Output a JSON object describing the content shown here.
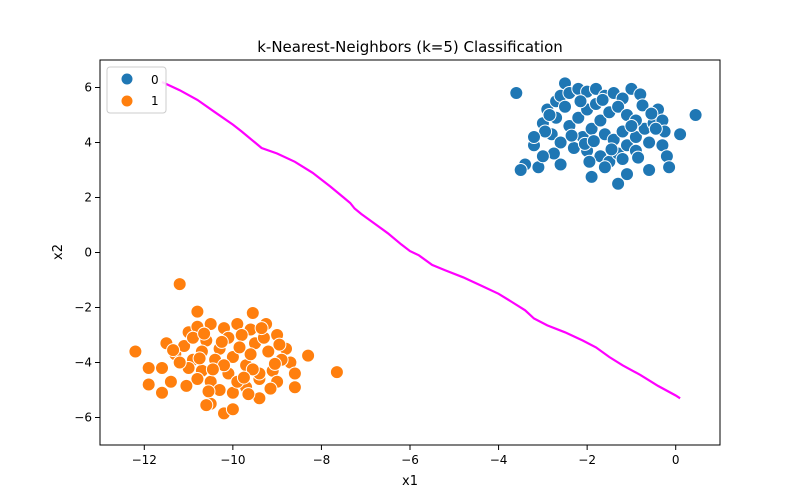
{
  "chart_data": {
    "type": "scatter",
    "title": "k-Nearest-Neighbors (k=5) Classification",
    "xlabel": "x1",
    "ylabel": "x2",
    "xlim": [
      -13,
      1
    ],
    "ylim": [
      -7,
      7
    ],
    "xticks": [
      -12,
      -10,
      -8,
      -6,
      -4,
      -2,
      0
    ],
    "yticks": [
      -6,
      -4,
      -2,
      0,
      2,
      4,
      6
    ],
    "xtick_labels": [
      "−12",
      "−10",
      "−8",
      "−6",
      "−4",
      "−2",
      "0"
    ],
    "ytick_labels": [
      "−6",
      "−4",
      "−2",
      "0",
      "2",
      "4",
      "6"
    ],
    "grid": false,
    "legend": {
      "placement": "top-left",
      "entries": [
        {
          "label": "0",
          "color": "#1f77b4"
        },
        {
          "label": "1",
          "color": "#ff7f0e"
        }
      ]
    },
    "series": [
      {
        "name": "0",
        "color": "#1f77b4",
        "points": [
          [
            -3.6,
            5.8
          ],
          [
            0.45,
            5.0
          ],
          [
            0.1,
            4.3
          ],
          [
            -3.4,
            3.2
          ],
          [
            -3.5,
            3.0
          ],
          [
            -3.2,
            3.9
          ],
          [
            -3.1,
            3.1
          ],
          [
            -2.6,
            3.2
          ],
          [
            -1.9,
            2.75
          ],
          [
            -1.3,
            2.5
          ],
          [
            -1.1,
            2.85
          ],
          [
            -0.6,
            3.0
          ],
          [
            -0.3,
            3.9
          ],
          [
            -0.2,
            3.5
          ],
          [
            -0.15,
            3.1
          ],
          [
            -2.5,
            6.15
          ],
          [
            -1.0,
            5.95
          ],
          [
            -0.8,
            5.75
          ],
          [
            -0.4,
            5.2
          ],
          [
            -3.0,
            4.7
          ],
          [
            -2.9,
            5.2
          ],
          [
            -2.7,
            5.5
          ],
          [
            -2.6,
            5.7
          ],
          [
            -2.4,
            5.8
          ],
          [
            -2.2,
            5.95
          ],
          [
            -2.0,
            5.85
          ],
          [
            -1.8,
            5.95
          ],
          [
            -1.6,
            5.7
          ],
          [
            -1.4,
            5.8
          ],
          [
            -1.2,
            5.6
          ],
          [
            -2.8,
            4.3
          ],
          [
            -2.6,
            4.0
          ],
          [
            -2.3,
            3.8
          ],
          [
            -2.0,
            3.7
          ],
          [
            -1.7,
            3.5
          ],
          [
            -1.5,
            3.3
          ],
          [
            -1.3,
            3.6
          ],
          [
            -1.1,
            3.9
          ],
          [
            -0.9,
            4.2
          ],
          [
            -0.7,
            4.5
          ],
          [
            -0.5,
            4.7
          ],
          [
            -0.3,
            4.8
          ],
          [
            -0.25,
            4.4
          ],
          [
            -0.6,
            4.0
          ],
          [
            -0.9,
            3.7
          ],
          [
            -1.2,
            3.4
          ],
          [
            -1.6,
            3.1
          ],
          [
            -2.1,
            4.2
          ],
          [
            -1.9,
            4.5
          ],
          [
            -1.7,
            4.8
          ],
          [
            -1.5,
            5.1
          ],
          [
            -1.3,
            5.3
          ],
          [
            -1.1,
            5.0
          ],
          [
            -0.9,
            4.8
          ],
          [
            -2.4,
            4.6
          ],
          [
            -2.2,
            4.9
          ],
          [
            -2.0,
            5.2
          ],
          [
            -1.8,
            5.4
          ],
          [
            -1.6,
            4.3
          ],
          [
            -1.4,
            4.1
          ],
          [
            -1.2,
            4.4
          ],
          [
            -1.0,
            4.6
          ],
          [
            -2.5,
            5.3
          ],
          [
            -2.7,
            4.9
          ],
          [
            -2.95,
            4.4
          ],
          [
            -3.2,
            4.2
          ],
          [
            -2.35,
            4.25
          ],
          [
            -2.05,
            3.95
          ],
          [
            -1.85,
            4.05
          ],
          [
            -0.75,
            5.35
          ],
          [
            -0.55,
            5.05
          ],
          [
            -0.45,
            4.5
          ],
          [
            -0.85,
            3.45
          ],
          [
            -1.45,
            3.75
          ],
          [
            -1.95,
            3.3
          ],
          [
            -2.75,
            3.6
          ],
          [
            -3.0,
            3.5
          ],
          [
            -1.65,
            5.55
          ],
          [
            -2.15,
            5.5
          ],
          [
            -2.85,
            5.0
          ]
        ]
      },
      {
        "name": "1",
        "color": "#ff7f0e",
        "points": [
          [
            -11.2,
            -1.15
          ],
          [
            -10.8,
            -2.15
          ],
          [
            -9.55,
            -2.2
          ],
          [
            -12.2,
            -3.6
          ],
          [
            -11.9,
            -4.8
          ],
          [
            -11.9,
            -4.2
          ],
          [
            -11.6,
            -5.1
          ],
          [
            -11.6,
            -4.2
          ],
          [
            -11.5,
            -3.3
          ],
          [
            -11.4,
            -4.7
          ],
          [
            -11.3,
            -3.7
          ],
          [
            -8.3,
            -3.75
          ],
          [
            -7.65,
            -4.35
          ],
          [
            -10.2,
            -5.85
          ],
          [
            -10.0,
            -5.7
          ],
          [
            -10.5,
            -5.5
          ],
          [
            -10.6,
            -5.55
          ],
          [
            -9.4,
            -5.3
          ],
          [
            -9.25,
            -2.6
          ],
          [
            -9.0,
            -3.0
          ],
          [
            -8.8,
            -3.5
          ],
          [
            -8.7,
            -4.0
          ],
          [
            -8.6,
            -4.4
          ],
          [
            -8.6,
            -4.9
          ],
          [
            -11.0,
            -2.9
          ],
          [
            -10.8,
            -2.7
          ],
          [
            -10.5,
            -2.6
          ],
          [
            -10.2,
            -2.75
          ],
          [
            -9.9,
            -2.6
          ],
          [
            -9.6,
            -2.8
          ],
          [
            -11.1,
            -3.4
          ],
          [
            -10.9,
            -3.9
          ],
          [
            -10.7,
            -4.3
          ],
          [
            -10.5,
            -4.7
          ],
          [
            -10.3,
            -5.0
          ],
          [
            -10.0,
            -5.1
          ],
          [
            -9.7,
            -4.9
          ],
          [
            -9.4,
            -4.6
          ],
          [
            -9.1,
            -4.3
          ],
          [
            -8.9,
            -3.9
          ],
          [
            -10.6,
            -3.2
          ],
          [
            -10.3,
            -3.5
          ],
          [
            -10.0,
            -3.8
          ],
          [
            -9.7,
            -4.1
          ],
          [
            -9.4,
            -4.4
          ],
          [
            -9.2,
            -3.6
          ],
          [
            -9.5,
            -3.3
          ],
          [
            -9.8,
            -3.0
          ],
          [
            -10.1,
            -3.1
          ],
          [
            -10.4,
            -3.9
          ],
          [
            -10.7,
            -3.6
          ],
          [
            -11.0,
            -4.2
          ],
          [
            -10.8,
            -4.6
          ],
          [
            -10.1,
            -4.4
          ],
          [
            -9.9,
            -4.7
          ],
          [
            -9.6,
            -3.7
          ],
          [
            -9.3,
            -3.1
          ],
          [
            -9.0,
            -4.7
          ],
          [
            -11.2,
            -4.0
          ],
          [
            -10.9,
            -3.1
          ],
          [
            -10.2,
            -4.1
          ],
          [
            -9.85,
            -3.45
          ],
          [
            -9.55,
            -4.25
          ],
          [
            -10.45,
            -4.25
          ],
          [
            -9.15,
            -4.95
          ],
          [
            -11.05,
            -4.85
          ],
          [
            -10.65,
            -2.95
          ],
          [
            -9.35,
            -2.75
          ],
          [
            -8.95,
            -3.35
          ],
          [
            -10.25,
            -3.25
          ],
          [
            -9.75,
            -4.55
          ],
          [
            -10.55,
            -5.05
          ],
          [
            -9.05,
            -4.05
          ],
          [
            -11.35,
            -3.55
          ],
          [
            -9.65,
            -5.15
          ],
          [
            -10.75,
            -3.85
          ]
        ]
      }
    ],
    "boundary": {
      "color": "#ff00ff",
      "points": [
        [
          -11.6,
          6.2
        ],
        [
          -11.2,
          5.9
        ],
        [
          -10.8,
          5.55
        ],
        [
          -10.4,
          5.1
        ],
        [
          -10.0,
          4.65
        ],
        [
          -9.8,
          4.4
        ],
        [
          -9.5,
          4.0
        ],
        [
          -9.35,
          3.8
        ],
        [
          -9.0,
          3.6
        ],
        [
          -8.6,
          3.3
        ],
        [
          -8.2,
          2.9
        ],
        [
          -7.8,
          2.4
        ],
        [
          -7.5,
          2.0
        ],
        [
          -7.35,
          1.8
        ],
        [
          -7.25,
          1.6
        ],
        [
          -7.1,
          1.4
        ],
        [
          -6.8,
          1.05
        ],
        [
          -6.5,
          0.7
        ],
        [
          -6.2,
          0.3
        ],
        [
          -6.0,
          0.05
        ],
        [
          -5.8,
          -0.1
        ],
        [
          -5.5,
          -0.45
        ],
        [
          -5.2,
          -0.65
        ],
        [
          -4.8,
          -0.9
        ],
        [
          -4.4,
          -1.2
        ],
        [
          -4.0,
          -1.5
        ],
        [
          -3.7,
          -1.8
        ],
        [
          -3.4,
          -2.1
        ],
        [
          -3.2,
          -2.4
        ],
        [
          -2.9,
          -2.65
        ],
        [
          -2.5,
          -2.9
        ],
        [
          -2.1,
          -3.2
        ],
        [
          -1.8,
          -3.45
        ],
        [
          -1.5,
          -3.8
        ],
        [
          -1.2,
          -4.1
        ],
        [
          -0.8,
          -4.45
        ],
        [
          -0.4,
          -4.85
        ],
        [
          0.0,
          -5.2
        ],
        [
          0.1,
          -5.3
        ]
      ]
    }
  }
}
